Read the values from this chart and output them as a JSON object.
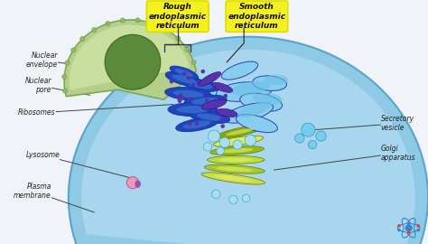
{
  "bg": "#f0f4f8",
  "colors": {
    "cell_outer_fill": "#8ecae6",
    "cell_outer_edge": "#5ba3c9",
    "cell_inner_fill": "#bde0f5",
    "nucleus_outer_fill": "#b5cf8a",
    "nucleus_outer_edge": "#7aaa55",
    "nucleus_mid_fill": "#c8dfa0",
    "nucleus_inner_fill": "#5a8a3a",
    "nucleus_inner_edge": "#3a6a1a",
    "pore_fill": "#90bb66",
    "pore_edge": "#5a8a3a",
    "er_blue_dark": "#2244bb",
    "er_blue_mid": "#3366cc",
    "er_blue_light": "#4488dd",
    "er_purple": "#5533aa",
    "er_fill_cyan": "#88ccee",
    "smooth_er_fill": "#44aadd",
    "smooth_er_edge": "#2277bb",
    "golgi_colors": [
      "#ccdd44",
      "#aacc22",
      "#bbdd33",
      "#99bb11",
      "#ddee55",
      "#88aa00"
    ],
    "golgi_edge": "#667700",
    "vesicle_fill": "#aaddf0",
    "vesicle_edge": "#44aacc",
    "lysosome_fill": "#ee99bb",
    "lysosome_edge": "#cc5577",
    "lysosome_tip": "#9955aa",
    "secretory_fill": "#77ccee",
    "secretory_edge": "#3399bb",
    "atom_blue": "#3388cc",
    "atom_red": "#ee3333",
    "label_text": "#222222",
    "arrow_color": "#444444",
    "er_label_bg": "#f5f020",
    "er_label_edge": "#dddd00"
  },
  "labels": {
    "rough_er": "Rough\nendoplasmic\nreticulum",
    "smooth_er": "Smooth\nendoplasmic\nreticulum",
    "nuclear_envelope": "Nuclear\nenvelope",
    "nuclear_pore": "Nuclear\npore",
    "ribosomes": "Ribosomes",
    "lysosome": "Lysosome",
    "plasma_membrane": "Plasma\nmembrane",
    "secretory_vesicle": "Secretory\nvesicle",
    "golgi_apparatus": "Golgi\napparatus"
  }
}
